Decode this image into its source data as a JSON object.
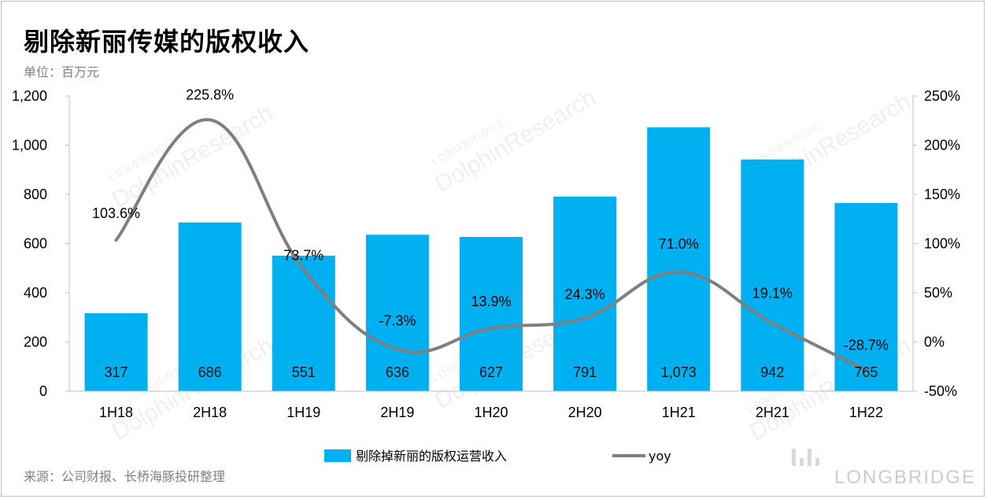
{
  "title": "剔除新丽传媒的版权收入",
  "unit": "单位：百万元",
  "source": "来源：公司财报、长桥海豚投研整理",
  "watermark": {
    "main": "DolphinResearch",
    "sub": "LONGBRIDGE",
    "brand": "LONGBRIDGE"
  },
  "colors": {
    "bar": "#00b0f0",
    "line": "#7f7f7f",
    "axis": "#bfbfbf"
  },
  "chart_data": {
    "type": "bar",
    "categories": [
      "1H18",
      "2H18",
      "1H19",
      "2H19",
      "1H20",
      "2H20",
      "1H21",
      "2H21",
      "1H22"
    ],
    "series": [
      {
        "name": "剔除掉新丽的版权运营收入",
        "type": "bar",
        "axis": "left",
        "values": [
          317,
          686,
          551,
          636,
          627,
          791,
          1073,
          942,
          765
        ],
        "labels": [
          "317",
          "686",
          "551",
          "636",
          "627",
          "791",
          "1,073",
          "942",
          "765"
        ]
      },
      {
        "name": "yoy",
        "type": "line",
        "axis": "right",
        "values": [
          103.6,
          225.8,
          73.7,
          -7.3,
          13.9,
          24.3,
          71.0,
          19.1,
          -28.7
        ],
        "labels": [
          "103.6%",
          "225.8%",
          "73.7%",
          "-7.3%",
          "13.9%",
          "24.3%",
          "71.0%",
          "19.1%",
          "-28.7%"
        ]
      }
    ],
    "y_left": {
      "min": 0,
      "max": 1200,
      "ticks": [
        "0",
        "200",
        "400",
        "600",
        "800",
        "1,000",
        "1,200"
      ]
    },
    "y_right": {
      "min": -50,
      "max": 250,
      "ticks": [
        "-50%",
        "0%",
        "50%",
        "100%",
        "150%",
        "200%",
        "250%"
      ]
    },
    "grid": false,
    "legend": "bottom-center"
  }
}
